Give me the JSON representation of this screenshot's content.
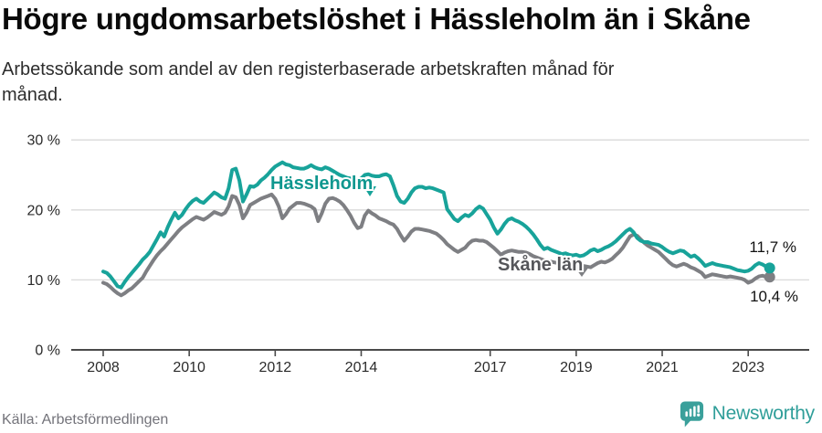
{
  "header": {
    "title": "Högre ungdomsarbetslöshet i Hässleholm än i Skåne",
    "subtitle_line1": "Arbetssökande som andel av den registerbaserade arbetskraften månad för",
    "subtitle_line2": "månad."
  },
  "chart_data": {
    "type": "line",
    "title": "Högre ungdomsarbetslöshet i Hässleholm än i Skåne",
    "subtitle": "Arbetssökande som andel av den registerbaserade arbetskraften månad för månad.",
    "unit": "%",
    "frequency": "monthly",
    "x_start": "2008-01",
    "x_end": "2023-07",
    "ylim": [
      0,
      30
    ],
    "grid": true,
    "yticks": [
      "0 %",
      "10 %",
      "20 %",
      "30 %"
    ],
    "ytick_values": [
      0,
      10,
      20,
      30
    ],
    "xticks": [
      "2008",
      "2010",
      "2012",
      "2014",
      "2017",
      "2019",
      "2021",
      "2023"
    ],
    "xtick_years": [
      2008,
      2010,
      2012,
      2014,
      2017,
      2019,
      2021,
      2023
    ],
    "series": [
      {
        "name": "Hässleholm",
        "color": "#18a39a",
        "label_color": "#0f978f",
        "last_value_label": "11,7 %",
        "values": [
          11.2,
          11.0,
          10.5,
          9.8,
          9.1,
          8.9,
          9.7,
          10.4,
          11.0,
          11.6,
          12.2,
          12.9,
          13.4,
          14.0,
          14.9,
          15.8,
          16.8,
          16.2,
          17.5,
          18.6,
          19.6,
          18.8,
          19.3,
          20.1,
          20.8,
          21.3,
          21.6,
          21.2,
          21.0,
          21.5,
          22.0,
          22.5,
          22.2,
          21.8,
          21.6,
          23.1,
          25.7,
          25.9,
          24.2,
          21.2,
          22.2,
          23.4,
          23.3,
          23.6,
          24.2,
          24.6,
          25.1,
          25.7,
          26.2,
          26.5,
          26.8,
          26.5,
          26.4,
          26.1,
          26.0,
          25.9,
          25.9,
          26.1,
          26.4,
          26.1,
          25.9,
          25.8,
          26.1,
          25.9,
          25.6,
          25.3,
          25.0,
          24.8,
          24.6,
          24.5,
          24.4,
          24.3,
          24.5,
          25.0,
          25.1,
          24.9,
          24.8,
          24.8,
          25.0,
          25.1,
          24.8,
          23.5,
          22.0,
          21.2,
          21.0,
          21.6,
          22.5,
          23.1,
          23.3,
          23.3,
          23.1,
          23.2,
          23.1,
          22.9,
          22.7,
          22.5,
          20.1,
          19.4,
          18.7,
          18.4,
          18.9,
          19.3,
          19.1,
          19.5,
          20.1,
          20.5,
          20.2,
          19.4,
          18.6,
          17.5,
          16.6,
          17.2,
          18.0,
          18.6,
          18.8,
          18.5,
          18.3,
          18.0,
          17.6,
          17.1,
          16.5,
          15.8,
          15.0,
          14.4,
          14.6,
          14.3,
          14.1,
          13.9,
          13.7,
          13.8,
          13.6,
          13.5,
          13.6,
          13.4,
          13.5,
          13.8,
          14.2,
          14.4,
          14.1,
          14.3,
          14.6,
          14.8,
          15.1,
          15.5,
          16.0,
          16.5,
          17.0,
          17.3,
          16.8,
          16.0,
          15.6,
          15.4,
          15.4,
          15.2,
          15.1,
          15.0,
          14.7,
          14.3,
          14.0,
          13.8,
          14.0,
          14.2,
          14.1,
          13.7,
          13.3,
          13.5,
          13.1,
          12.6,
          12.0,
          12.2,
          12.4,
          12.2,
          12.1,
          12.0,
          11.9,
          11.8,
          11.6,
          11.4,
          11.3,
          11.2,
          11.3,
          11.6,
          12.1,
          12.4,
          12.2,
          11.9,
          11.7
        ]
      },
      {
        "name": "Skåne län",
        "color": "#7e7f83",
        "label_color": "#55565a",
        "last_value_label": "10,4 %",
        "values": [
          9.6,
          9.4,
          9.0,
          8.5,
          8.1,
          7.8,
          8.1,
          8.5,
          8.8,
          9.3,
          9.8,
          10.3,
          11.2,
          12.0,
          12.8,
          13.5,
          14.1,
          14.6,
          15.2,
          15.8,
          16.4,
          17.0,
          17.5,
          17.9,
          18.3,
          18.7,
          19.0,
          18.8,
          18.6,
          18.9,
          19.3,
          19.7,
          19.5,
          19.3,
          19.6,
          20.5,
          22.0,
          21.8,
          20.7,
          18.8,
          19.6,
          20.7,
          21.0,
          21.3,
          21.6,
          21.8,
          22.0,
          22.2,
          21.6,
          20.5,
          18.8,
          19.4,
          20.2,
          20.6,
          21.0,
          21.0,
          20.9,
          20.7,
          20.5,
          20.1,
          18.4,
          19.5,
          20.9,
          21.6,
          21.7,
          21.5,
          21.2,
          20.7,
          20.0,
          19.2,
          18.2,
          17.4,
          17.6,
          19.2,
          19.9,
          19.5,
          19.2,
          18.8,
          18.6,
          18.4,
          18.1,
          17.9,
          17.3,
          16.4,
          15.6,
          16.2,
          16.9,
          17.3,
          17.3,
          17.2,
          17.1,
          17.0,
          16.8,
          16.6,
          16.2,
          15.7,
          15.1,
          14.7,
          14.3,
          14.0,
          14.3,
          14.6,
          15.2,
          15.6,
          15.7,
          15.6,
          15.6,
          15.4,
          15.0,
          14.6,
          14.1,
          13.6,
          13.9,
          14.1,
          14.2,
          14.1,
          14.0,
          14.0,
          13.9,
          13.7,
          13.4,
          13.2,
          13.0,
          12.8,
          12.7,
          12.6,
          12.5,
          12.4,
          12.3,
          12.2,
          12.2,
          12.2,
          12.2,
          12.1,
          12.0,
          11.9,
          11.8,
          12.1,
          12.4,
          12.6,
          12.5,
          12.7,
          13.0,
          13.5,
          14.0,
          14.6,
          15.4,
          16.2,
          16.5,
          16.3,
          15.8,
          15.3,
          14.9,
          14.6,
          14.3,
          14.0,
          13.5,
          13.0,
          12.5,
          12.1,
          11.9,
          12.1,
          12.3,
          12.1,
          11.8,
          11.6,
          11.3,
          11.0,
          10.4,
          10.6,
          10.8,
          10.7,
          10.6,
          10.5,
          10.4,
          10.5,
          10.4,
          10.3,
          10.2,
          10.0,
          9.6,
          9.8,
          10.2,
          10.5,
          10.6,
          10.4,
          10.4
        ]
      }
    ]
  },
  "footer": {
    "source": "Källa: Arbetsförmedlingen",
    "brand": "Newsworthy",
    "brand_color": "#2f9e99"
  }
}
